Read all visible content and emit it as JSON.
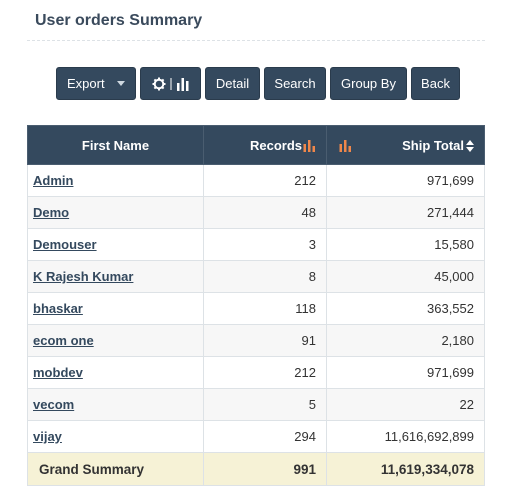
{
  "title": "User orders Summary",
  "toolbar": {
    "export_label": "Export",
    "detail_label": "Detail",
    "search_label": "Search",
    "group_by_label": "Group By",
    "back_label": "Back"
  },
  "table": {
    "columns": [
      "First Name",
      "Records",
      "Ship Total"
    ],
    "rows": [
      {
        "name": "Admin",
        "records": "212",
        "ship_total": "971,699"
      },
      {
        "name": "Demo",
        "records": "48",
        "ship_total": "271,444"
      },
      {
        "name": "Demouser",
        "records": "3",
        "ship_total": "15,580"
      },
      {
        "name": "K Rajesh Kumar",
        "records": "8",
        "ship_total": "45,000"
      },
      {
        "name": "bhaskar",
        "records": "118",
        "ship_total": "363,552"
      },
      {
        "name": "ecom one",
        "records": "91",
        "ship_total": "2,180"
      },
      {
        "name": "mobdev",
        "records": "212",
        "ship_total": "971,699"
      },
      {
        "name": "vecom",
        "records": "5",
        "ship_total": "22"
      },
      {
        "name": "vijay",
        "records": "294",
        "ship_total": "11,616,692,899"
      }
    ],
    "footer": {
      "label": "Grand Summary",
      "records": "991",
      "ship_total": "11,619,334,078"
    }
  },
  "icons": {
    "gear": "gear-icon",
    "bar_chart": "bar-chart-icon",
    "sort": "sort-icon",
    "caret": "caret-down-icon"
  },
  "colors": {
    "header_bg": "#34495e",
    "chart_icon": "#f0874a",
    "footer_bg": "#f6f2d6"
  }
}
